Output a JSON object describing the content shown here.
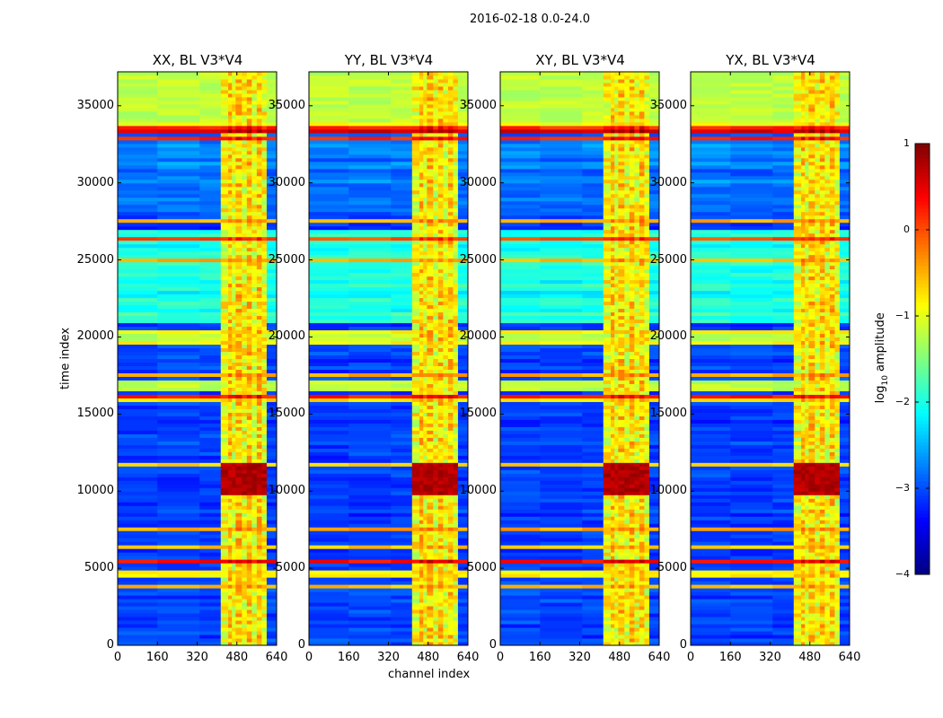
{
  "figure": {
    "suptitle": "2016-02-18 0.0-24.0",
    "xlabel": "channel index",
    "ylabel": "time index"
  },
  "chart_data": {
    "type": "heatmap",
    "panels": [
      {
        "title": "XX, BL V3*V4",
        "pol": "XX"
      },
      {
        "title": "YY, BL V3*V4",
        "pol": "YY"
      },
      {
        "title": "XY, BL V3*V4",
        "pol": "XY"
      },
      {
        "title": "YX, BL V3*V4",
        "pol": "YX"
      }
    ],
    "xlim": [
      0,
      640
    ],
    "ylim": [
      0,
      37200
    ],
    "x_ticks": [
      0,
      160,
      320,
      480,
      640
    ],
    "x_tick_labels": [
      "0",
      "160",
      "320",
      "480",
      "640"
    ],
    "y_ticks": [
      0,
      5000,
      10000,
      15000,
      20000,
      25000,
      30000,
      35000
    ],
    "y_tick_labels": [
      "0",
      "5000",
      "10000",
      "15000",
      "20000",
      "25000",
      "30000",
      "35000"
    ],
    "colorbar": {
      "label": "log10 amplitude",
      "label_main": "log",
      "label_sub": "10",
      "label_rest": " amplitude",
      "vmin": -4,
      "vmax": 1,
      "ticks": [
        1,
        0,
        -1,
        -2,
        -3,
        -4
      ],
      "tick_labels": [
        "1",
        "0",
        "−1",
        "−2",
        "−3",
        "−4"
      ]
    },
    "bright_channel_range": [
      415,
      600
    ],
    "strong_rfi_time_range": [
      9800,
      11800
    ],
    "high_flag_time_ranges": [
      [
        34000,
        37200
      ],
      [
        19500,
        20400
      ],
      [
        16500,
        17200
      ]
    ],
    "colormap": "jet"
  }
}
